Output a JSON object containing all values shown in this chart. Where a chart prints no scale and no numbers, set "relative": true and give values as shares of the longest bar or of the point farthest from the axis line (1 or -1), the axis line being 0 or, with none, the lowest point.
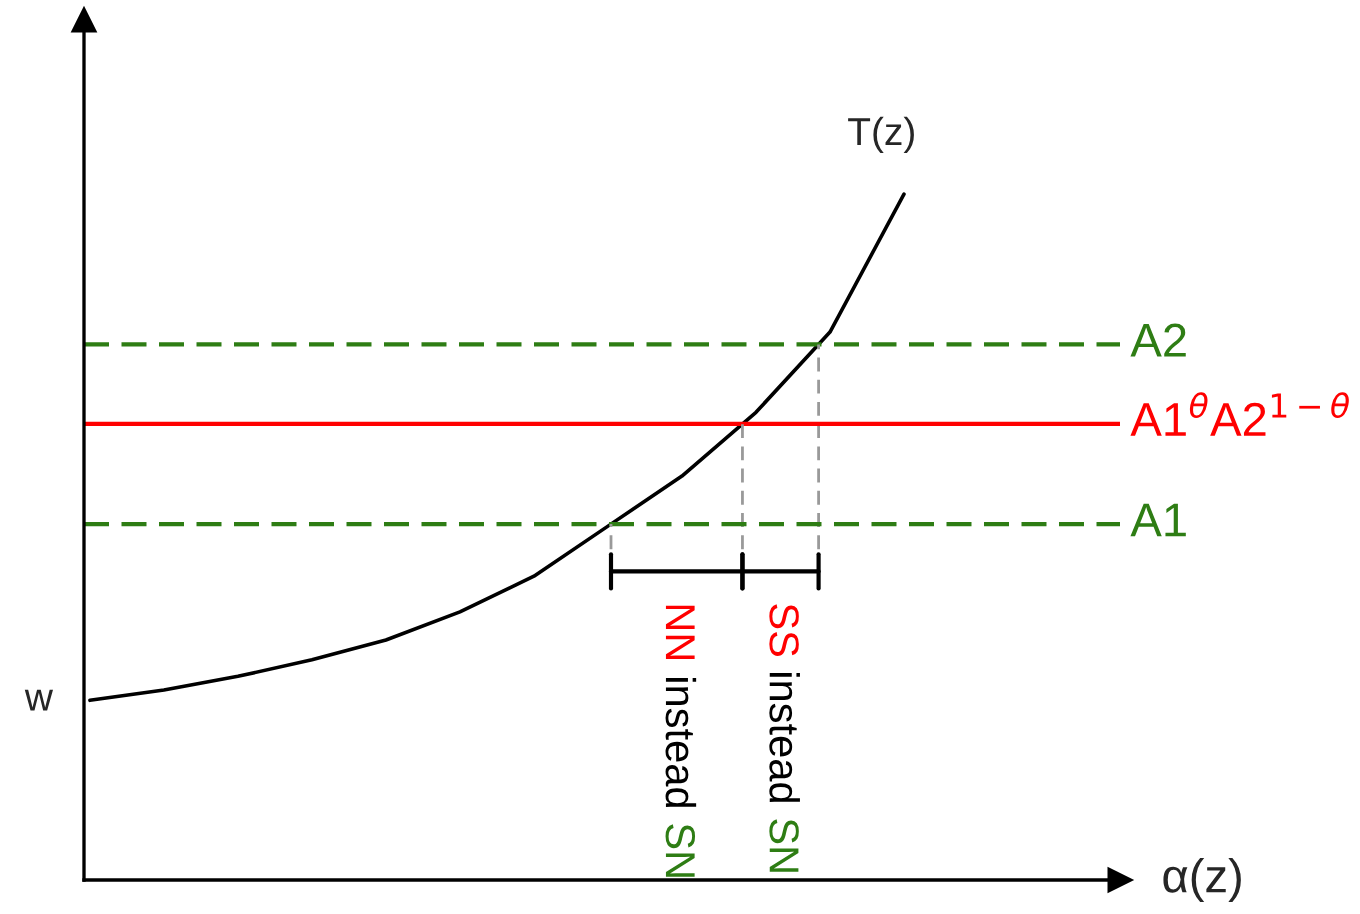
{
  "chart_data": {
    "type": "line",
    "relative": true,
    "xlabel": "α(z)",
    "categories": [
      null,
      null,
      null,
      null,
      null,
      null,
      null,
      null,
      null,
      null,
      null,
      null
    ],
    "series": [
      {
        "color": "#000000",
        "values": [
          0.262,
          0.277,
          0.297,
          0.321,
          0.35,
          0.391,
          0.443,
          0.516,
          0.589,
          0.682,
          0.799,
          1.0
        ]
      }
    ],
    "ref_lines": [
      {
        "axis": "y",
        "value": 0.781,
        "label": "A2",
        "color": "#2e7d14",
        "line_style": "dashed"
      },
      {
        "axis": "y",
        "value": 0.665,
        "label": "A1$^{θ}$A2$^{1−θ}$",
        "color": "#ff0000",
        "line_style": "solid"
      },
      {
        "axis": "y",
        "value": 0.519,
        "label": "A1",
        "color": "#2e7d14",
        "line_style": "dashed"
      }
    ],
    "annotations": [
      "T(z)",
      "w",
      "NN instead SN",
      "SS instead SN"
    ],
    "marker": "none",
    "line_style": "solid"
  }
}
